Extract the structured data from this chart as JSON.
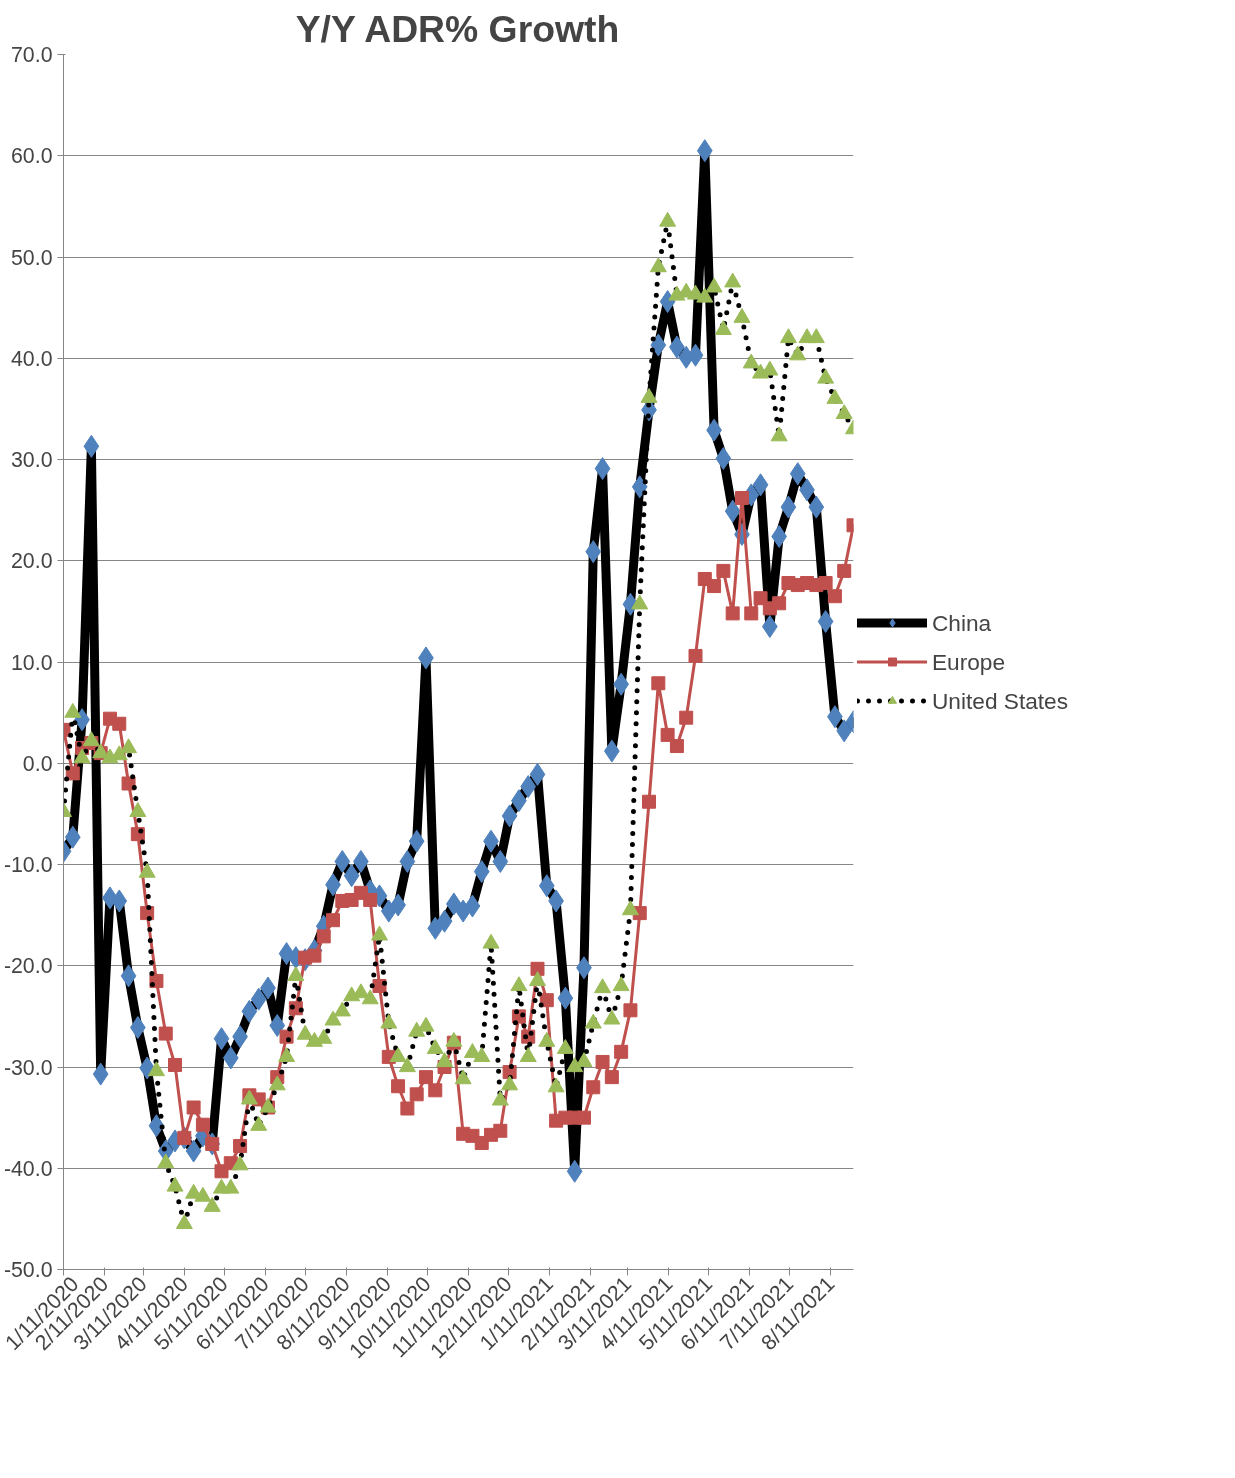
{
  "chart_data": {
    "type": "line",
    "title": "Y/Y ADR% Growth",
    "x": [
      "2020-01-11",
      "2020-01-18",
      "2020-01-25",
      "2020-02-01",
      "2020-02-08",
      "2020-02-15",
      "2020-02-22",
      "2020-02-29",
      "2020-03-07",
      "2020-03-14",
      "2020-03-21",
      "2020-03-28",
      "2020-04-04",
      "2020-04-11",
      "2020-04-18",
      "2020-04-25",
      "2020-05-02",
      "2020-05-09",
      "2020-05-16",
      "2020-05-23",
      "2020-05-30",
      "2020-06-06",
      "2020-06-13",
      "2020-06-20",
      "2020-06-27",
      "2020-07-04",
      "2020-07-11",
      "2020-07-18",
      "2020-07-25",
      "2020-08-01",
      "2020-08-08",
      "2020-08-15",
      "2020-08-22",
      "2020-08-29",
      "2020-09-05",
      "2020-09-12",
      "2020-09-19",
      "2020-09-26",
      "2020-10-03",
      "2020-10-10",
      "2020-10-17",
      "2020-10-24",
      "2020-10-31",
      "2020-11-07",
      "2020-11-14",
      "2020-11-21",
      "2020-11-28",
      "2020-12-05",
      "2020-12-12",
      "2020-12-19",
      "2020-12-26",
      "2021-01-02",
      "2021-01-09",
      "2021-01-16",
      "2021-01-23",
      "2021-01-30",
      "2021-02-06",
      "2021-02-13",
      "2021-02-20",
      "2021-02-27",
      "2021-03-06",
      "2021-03-13",
      "2021-03-20",
      "2021-03-27",
      "2021-04-03",
      "2021-04-10",
      "2021-04-17",
      "2021-04-24",
      "2021-05-01",
      "2021-05-08",
      "2021-05-15",
      "2021-05-22",
      "2021-05-29",
      "2021-06-05",
      "2021-06-12",
      "2021-06-19",
      "2021-06-26",
      "2021-07-03",
      "2021-07-10",
      "2021-07-17",
      "2021-07-24",
      "2021-07-31",
      "2021-08-07",
      "2021-08-14",
      "2021-08-21",
      "2021-08-28"
    ],
    "series": [
      {
        "name": "China",
        "color": "#4f81bd",
        "marker": "diamond",
        "line_style": "solid",
        "values": [
          -8.7,
          -7.3,
          4.3,
          31.3,
          -30.7,
          -13.3,
          -13.6,
          -21.0,
          -26.1,
          -30.1,
          -35.8,
          -38.3,
          -37.3,
          -37.0,
          -38.3,
          -36.8,
          -37.6,
          -27.2,
          -29.1,
          -27.0,
          -24.5,
          -23.3,
          -22.2,
          -25.9,
          -18.8,
          -19.2,
          -19.4,
          -18.5,
          -16.1,
          -12.0,
          -9.7,
          -11.1,
          -9.7,
          -12.6,
          -13.1,
          -14.6,
          -14.0,
          -9.7,
          -7.7,
          10.4,
          -16.3,
          -15.6,
          -13.9,
          -14.6,
          -14.1,
          -10.7,
          -7.7,
          -9.7,
          -5.2,
          -3.7,
          -2.3,
          -1.1,
          -12.1,
          -13.6,
          -23.2,
          -40.3,
          -20.2,
          20.9,
          29.1,
          1.2,
          7.8,
          15.7,
          27.3,
          34.9,
          41.3,
          45.6,
          41.1,
          40.1,
          40.3,
          60.5,
          32.9,
          30.1,
          24.9,
          22.6,
          26.5,
          27.5,
          13.5,
          22.4,
          25.3,
          28.6,
          27.0,
          25.3,
          14.0,
          4.6,
          3.2,
          4.1
        ]
      },
      {
        "name": "Europe",
        "color": "#c0504d",
        "marker": "square",
        "line_style": "solid",
        "values": [
          3.3,
          -1.0,
          1.5,
          2.0,
          1.0,
          4.4,
          3.9,
          -2.0,
          -7.0,
          -14.8,
          -21.5,
          -26.7,
          -29.8,
          -37.0,
          -34.0,
          -35.7,
          -37.6,
          -40.3,
          -39.5,
          -37.8,
          -32.8,
          -33.2,
          -34.0,
          -31.0,
          -27.0,
          -24.2,
          -19.2,
          -19.0,
          -17.1,
          -15.5,
          -13.6,
          -13.5,
          -12.8,
          -13.5,
          -22.0,
          -29.0,
          -31.9,
          -34.1,
          -32.7,
          -31.0,
          -32.3,
          -30.0,
          -27.6,
          -36.6,
          -36.8,
          -37.5,
          -36.7,
          -36.3,
          -30.5,
          -25.0,
          -27.0,
          -20.3,
          -23.4,
          -35.3,
          -35.0,
          -35.0,
          -35.0,
          -32.0,
          -29.5,
          -31.0,
          -28.5,
          -24.4,
          -14.8,
          -3.8,
          7.9,
          2.8,
          1.7,
          4.5,
          10.6,
          18.2,
          17.5,
          19.0,
          14.8,
          26.2,
          14.8,
          16.3,
          15.3,
          15.8,
          17.8,
          17.6,
          17.8,
          17.6,
          17.8,
          16.5,
          19.0,
          23.5
        ]
      },
      {
        "name": "United States",
        "color": "#9bbb59",
        "marker": "triangle",
        "line_style": "dotted",
        "values": [
          -4.8,
          5.0,
          0.5,
          2.2,
          1.0,
          0.5,
          0.8,
          1.5,
          -4.8,
          -10.8,
          -30.4,
          -39.5,
          -41.8,
          -45.5,
          -42.5,
          -42.8,
          -43.8,
          -42.0,
          -42.0,
          -39.7,
          -33.2,
          -35.8,
          -34.0,
          -31.8,
          -29.0,
          -21.0,
          -26.8,
          -27.5,
          -27.2,
          -25.4,
          -24.5,
          -23.0,
          -22.7,
          -23.3,
          -17.0,
          -25.7,
          -29.0,
          -30.0,
          -26.5,
          -26.0,
          -28.2,
          -29.5,
          -27.5,
          -31.2,
          -28.6,
          -29.0,
          -17.8,
          -33.3,
          -31.8,
          -22.0,
          -29.0,
          -21.5,
          -27.5,
          -32.0,
          -28.2,
          -30.0,
          -29.5,
          -25.7,
          -22.2,
          -25.3,
          -22.0,
          -14.5,
          15.7,
          36.1,
          49.0,
          53.5,
          46.2,
          46.5,
          46.3,
          46.0,
          47.0,
          42.8,
          47.5,
          44.0,
          39.5,
          38.5,
          38.8,
          32.3,
          42.0,
          40.3,
          42.0,
          42.0,
          38.0,
          36.0,
          34.5,
          33.0
        ]
      }
    ],
    "xlim": [
      "2020-01-11",
      "2021-08-28"
    ],
    "xticks": [
      {
        "value": "2020-01-11",
        "label": "1/11/2020"
      },
      {
        "value": "2020-02-11",
        "label": "2/11/2020"
      },
      {
        "value": "2020-03-11",
        "label": "3/11/2020"
      },
      {
        "value": "2020-04-11",
        "label": "4/11/2020"
      },
      {
        "value": "2020-05-11",
        "label": "5/11/2020"
      },
      {
        "value": "2020-06-11",
        "label": "6/11/2020"
      },
      {
        "value": "2020-07-11",
        "label": "7/11/2020"
      },
      {
        "value": "2020-08-11",
        "label": "8/11/2020"
      },
      {
        "value": "2020-09-11",
        "label": "9/11/2020"
      },
      {
        "value": "2020-10-11",
        "label": "10/11/2020"
      },
      {
        "value": "2020-11-11",
        "label": "11/11/2020"
      },
      {
        "value": "2020-12-11",
        "label": "12/11/2020"
      },
      {
        "value": "2021-01-11",
        "label": "1/11/2021"
      },
      {
        "value": "2021-02-11",
        "label": "2/11/2021"
      },
      {
        "value": "2021-03-11",
        "label": "3/11/2021"
      },
      {
        "value": "2021-04-11",
        "label": "4/11/2021"
      },
      {
        "value": "2021-05-11",
        "label": "5/11/2021"
      },
      {
        "value": "2021-06-11",
        "label": "6/11/2021"
      },
      {
        "value": "2021-07-11",
        "label": "7/11/2021"
      },
      {
        "value": "2021-08-11",
        "label": "8/11/2021"
      }
    ],
    "ylim": [
      -50,
      70
    ],
    "yticks": [
      {
        "value": -50,
        "label": "-50.0"
      },
      {
        "value": -40,
        "label": "-40.0"
      },
      {
        "value": -30,
        "label": "-30.0"
      },
      {
        "value": -20,
        "label": "-20.0"
      },
      {
        "value": -10,
        "label": "-10.0"
      },
      {
        "value": 0,
        "label": "0.0"
      },
      {
        "value": 10,
        "label": "10.0"
      },
      {
        "value": 20,
        "label": "20.0"
      },
      {
        "value": 30,
        "label": "30.0"
      },
      {
        "value": 40,
        "label": "40.0"
      },
      {
        "value": 50,
        "label": "50.0"
      },
      {
        "value": 60,
        "label": "60.0"
      },
      {
        "value": 70,
        "label": "70.0"
      }
    ],
    "grid": "y",
    "legend": "right"
  }
}
